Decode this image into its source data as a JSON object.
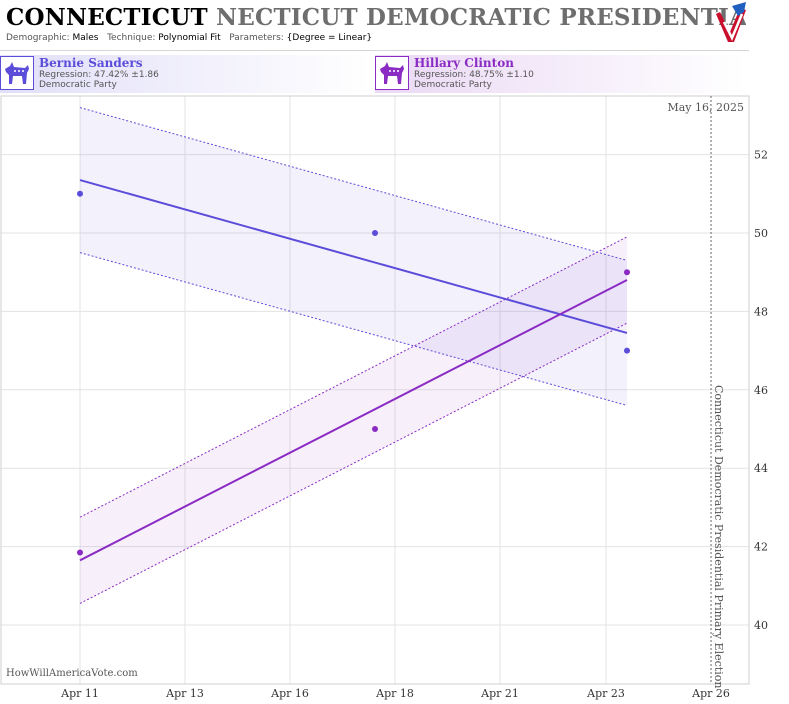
{
  "header": {
    "title_state": "CONNECTICUT",
    "title_rest": "NECTICUT DEMOCRATIC PRESIDENTIAL PRIMAR",
    "demographic_label": "Demographic:",
    "demographic_value": "Males",
    "technique_label": "Technique:",
    "technique_value": "Polynomial Fit",
    "parameters_label": "Parameters:",
    "parameters_value": "{Degree = Linear}"
  },
  "candidates": [
    {
      "name": "Bernie Sanders",
      "regression": "Regression: 47.42% ±1.86",
      "party": "Democratic Party",
      "color": "#5b4dd9"
    },
    {
      "name": "Hillary Clinton",
      "regression": "Regression: 48.75% ±1.10",
      "party": "Democratic Party",
      "color": "#8a2bc4"
    }
  ],
  "date_label": "May 16, 2025",
  "event_label": "Connecticut Democratic Presidential Primary Election",
  "watermark": "HowWillAmericaVote.com",
  "chart_data": {
    "type": "line",
    "x_ticks": [
      "Apr 11",
      "Apr 13",
      "Apr 16",
      "Apr 18",
      "Apr 21",
      "Apr 23",
      "Apr 26"
    ],
    "y_ticks": [
      40,
      42,
      44,
      46,
      48,
      50,
      52
    ],
    "ylim": [
      38.5,
      54
    ],
    "xlim_days": [
      10.2,
      26.8
    ],
    "event_day": 26,
    "grid": true,
    "series": [
      {
        "name": "Bernie Sanders",
        "color": "#5b4dd9",
        "points": [
          [
            11,
            51.0
          ],
          [
            17.6,
            50.0
          ],
          [
            23.6,
            47.0
          ]
        ],
        "fit": [
          [
            11,
            51.35
          ],
          [
            23.6,
            47.45
          ]
        ],
        "band_upper": [
          [
            11,
            53.2
          ],
          [
            23.6,
            49.3
          ]
        ],
        "band_lower": [
          [
            11,
            49.5
          ],
          [
            23.6,
            45.6
          ]
        ]
      },
      {
        "name": "Hillary Clinton",
        "color": "#8a2bc4",
        "points": [
          [
            11,
            41.85
          ],
          [
            17.6,
            45.0
          ],
          [
            23.6,
            49.0
          ]
        ],
        "fit": [
          [
            11,
            41.65
          ],
          [
            23.6,
            48.8
          ]
        ],
        "band_upper": [
          [
            11,
            42.75
          ],
          [
            23.6,
            49.9
          ]
        ],
        "band_lower": [
          [
            11,
            40.55
          ],
          [
            23.6,
            47.7
          ]
        ]
      }
    ]
  }
}
